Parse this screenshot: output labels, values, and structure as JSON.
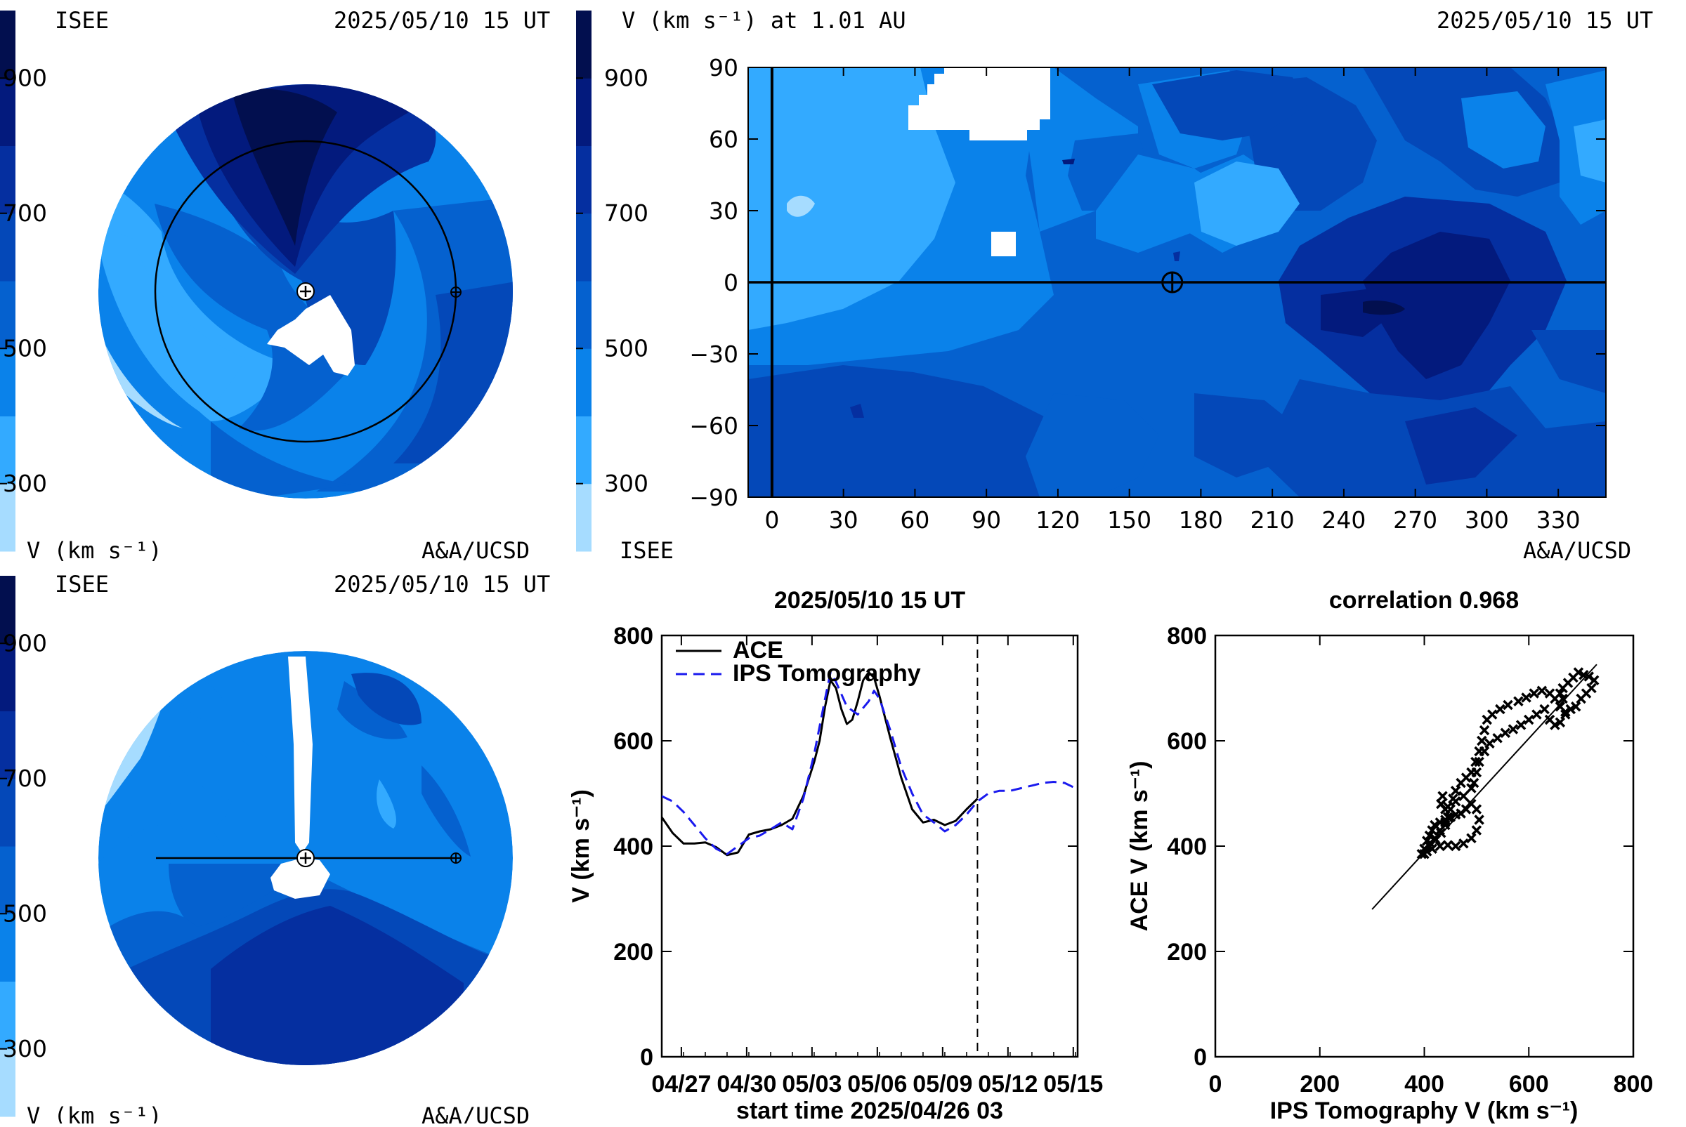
{
  "colorbar": {
    "levels": [
      200,
      300,
      400,
      500,
      600,
      700,
      800,
      900,
      1000
    ],
    "colors": [
      "#a6dcff",
      "#33aaff",
      "#0a82ea",
      "#0561cf",
      "#0448b8",
      "#052fa0",
      "#031a7d",
      "#020f4f",
      "#010a33"
    ],
    "tick_labels": [
      "300",
      "500",
      "700",
      "900"
    ],
    "ticks": [
      300,
      500,
      700,
      900
    ]
  },
  "panel_top_left": {
    "label_tl": "ISEE",
    "label_tr": "2025/05/10 15 UT",
    "label_bl": "V (km s⁻¹)",
    "label_br": "A&A/UCSD"
  },
  "panel_bottom_left": {
    "label_tl": "ISEE",
    "label_tr": "2025/05/10 15 UT",
    "label_bl": "V (km s⁻¹)",
    "label_br": "A&A/UCSD"
  },
  "panel_map": {
    "title_left": "V (km s⁻¹) at 1.01 AU",
    "title_right": "2025/05/10 15 UT",
    "label_bl": "ISEE",
    "label_br": "A&A/UCSD",
    "x_tick_labels": [
      "0",
      "30",
      "60",
      "90",
      "120",
      "150",
      "180",
      "210",
      "240",
      "270",
      "300",
      "330"
    ],
    "x_ticks": [
      0,
      30,
      60,
      90,
      120,
      150,
      180,
      210,
      240,
      270,
      300,
      330
    ],
    "y_tick_labels": [
      "90",
      "60",
      "30",
      "0",
      "−30",
      "−60",
      "−90"
    ],
    "y_ticks": [
      90,
      60,
      30,
      0,
      -30,
      -60,
      -90
    ],
    "xlim": [
      -10,
      350
    ],
    "ylim": [
      -90,
      90
    ],
    "earth_longitude": 168,
    "earth_latitude": 0
  },
  "chart_data": [
    {
      "type": "line",
      "title": "2025/05/10 15 UT",
      "xlabel": "start time 2025/04/26 03",
      "ylabel": "V (km s⁻¹)",
      "ylim": [
        0,
        800
      ],
      "yticks": [
        0,
        200,
        400,
        600,
        800
      ],
      "x_tick_labels": [
        "04/27",
        "04/30",
        "05/03",
        "05/06",
        "05/09",
        "05/12",
        "05/15"
      ],
      "x_tick_days": [
        0.9,
        3.9,
        6.9,
        9.9,
        12.9,
        15.9,
        18.9
      ],
      "xlim_days": [
        0,
        19.1
      ],
      "now_day": 14.5,
      "legend": [
        "ACE",
        "IPS Tomography"
      ],
      "series": [
        {
          "name": "ACE",
          "days": [
            0,
            0.5,
            1,
            1.5,
            2,
            2.5,
            3,
            3.5,
            4,
            4.5,
            5,
            5.5,
            6,
            6.5,
            7,
            7.25,
            7.5,
            7.75,
            8,
            8.25,
            8.5,
            8.75,
            9,
            9.25,
            9.5,
            9.75,
            10,
            10.5,
            11,
            11.5,
            12,
            12.5,
            13,
            13.5,
            14,
            14.5
          ],
          "values": [
            455,
            425,
            405,
            405,
            407,
            398,
            383,
            388,
            422,
            428,
            432,
            440,
            452,
            495,
            560,
            600,
            665,
            715,
            700,
            660,
            632,
            640,
            675,
            715,
            730,
            720,
            685,
            605,
            530,
            470,
            445,
            450,
            440,
            448,
            470,
            490
          ]
        },
        {
          "name": "IPS Tomography",
          "days": [
            0,
            0.5,
            1,
            1.5,
            2,
            2.5,
            3,
            3.5,
            4,
            4.5,
            5,
            5.5,
            6,
            6.5,
            7,
            7.5,
            7.75,
            8,
            8.5,
            9,
            9.5,
            9.75,
            10,
            10.5,
            11,
            11.5,
            12,
            12.5,
            13,
            13.5,
            14,
            14.5,
            15,
            15.5,
            16,
            16.5,
            17,
            17.5,
            18,
            18.5,
            19
          ],
          "values": [
            495,
            485,
            465,
            440,
            415,
            395,
            385,
            400,
            415,
            420,
            432,
            445,
            432,
            490,
            575,
            680,
            730,
            712,
            665,
            650,
            675,
            695,
            680,
            620,
            550,
            500,
            460,
            445,
            428,
            440,
            460,
            485,
            500,
            505,
            505,
            510,
            515,
            520,
            522,
            520,
            510
          ]
        }
      ]
    },
    {
      "type": "scatter",
      "title": "correlation 0.968",
      "xlabel": "IPS Tomography V (km s⁻¹)",
      "ylabel": "ACE V (km s⁻¹)",
      "xlim": [
        0,
        800
      ],
      "ylim": [
        0,
        800
      ],
      "xticks": [
        0,
        200,
        400,
        600,
        800
      ],
      "yticks": [
        0,
        200,
        400,
        600,
        800
      ],
      "fit_line": [
        [
          300,
          280
        ],
        [
          730,
          745
        ]
      ],
      "points": [
        [
          395,
          385
        ],
        [
          400,
          395
        ],
        [
          405,
          410
        ],
        [
          410,
          420
        ],
        [
          415,
          430
        ],
        [
          420,
          440
        ],
        [
          430,
          445
        ],
        [
          440,
          450
        ],
        [
          450,
          455
        ],
        [
          460,
          460
        ],
        [
          470,
          462
        ],
        [
          480,
          470
        ],
        [
          490,
          480
        ],
        [
          500,
          470
        ],
        [
          505,
          450
        ],
        [
          500,
          430
        ],
        [
          490,
          415
        ],
        [
          475,
          405
        ],
        [
          460,
          400
        ],
        [
          445,
          402
        ],
        [
          430,
          400
        ],
        [
          415,
          395
        ],
        [
          405,
          390
        ],
        [
          400,
          385
        ],
        [
          410,
          400
        ],
        [
          420,
          415
        ],
        [
          430,
          430
        ],
        [
          440,
          445
        ],
        [
          440,
          470
        ],
        [
          435,
          495
        ],
        [
          432,
          480
        ],
        [
          445,
          475
        ],
        [
          460,
          485
        ],
        [
          475,
          495
        ],
        [
          490,
          510
        ],
        [
          495,
          520
        ],
        [
          500,
          540
        ],
        [
          505,
          560
        ],
        [
          515,
          580
        ],
        [
          525,
          595
        ],
        [
          540,
          605
        ],
        [
          555,
          615
        ],
        [
          570,
          622
        ],
        [
          585,
          630
        ],
        [
          600,
          640
        ],
        [
          615,
          650
        ],
        [
          630,
          660
        ],
        [
          640,
          640
        ],
        [
          650,
          630
        ],
        [
          660,
          635
        ],
        [
          670,
          650
        ],
        [
          665,
          680
        ],
        [
          660,
          690
        ],
        [
          665,
          700
        ],
        [
          675,
          710
        ],
        [
          685,
          720
        ],
        [
          695,
          730
        ],
        [
          705,
          725
        ],
        [
          715,
          722
        ],
        [
          725,
          715
        ],
        [
          720,
          700
        ],
        [
          710,
          690
        ],
        [
          700,
          680
        ],
        [
          690,
          665
        ],
        [
          680,
          660
        ],
        [
          670,
          655
        ],
        [
          660,
          665
        ],
        [
          650,
          680
        ],
        [
          640,
          690
        ],
        [
          625,
          695
        ],
        [
          610,
          690
        ],
        [
          595,
          682
        ],
        [
          580,
          675
        ],
        [
          560,
          668
        ],
        [
          545,
          660
        ],
        [
          530,
          650
        ],
        [
          520,
          640
        ],
        [
          515,
          620
        ],
        [
          510,
          600
        ],
        [
          505,
          580
        ],
        [
          498,
          560
        ],
        [
          490,
          540
        ],
        [
          480,
          530
        ],
        [
          470,
          520
        ],
        [
          460,
          505
        ],
        [
          455,
          490
        ],
        [
          450,
          470
        ],
        [
          445,
          455
        ],
        [
          440,
          440
        ],
        [
          432,
          425
        ],
        [
          422,
          412
        ],
        [
          412,
          405
        ]
      ]
    }
  ]
}
